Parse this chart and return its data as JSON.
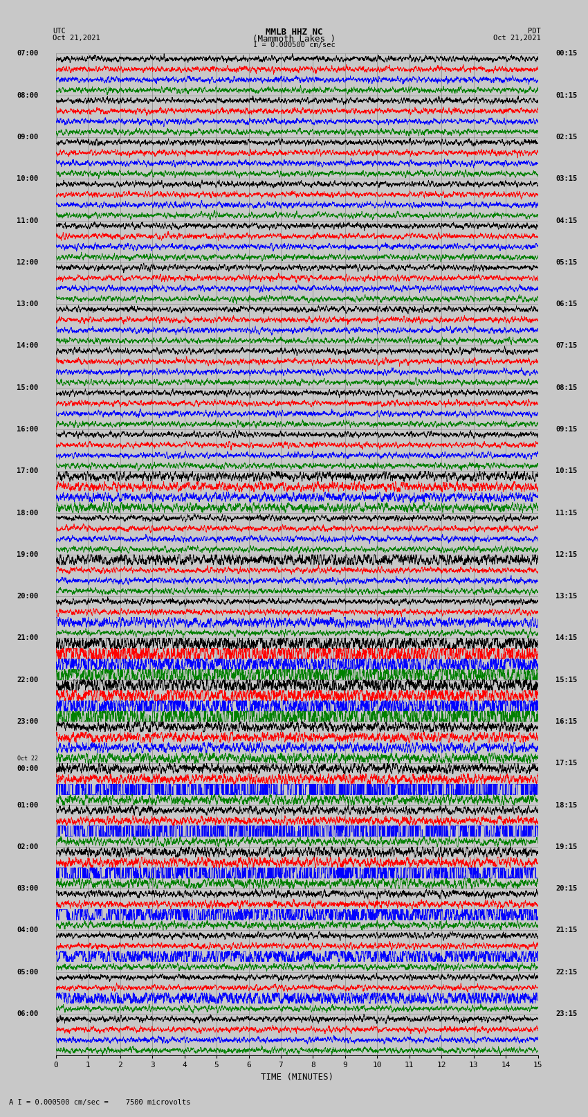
{
  "title_line1": "MMLB HHZ NC",
  "title_line2": "(Mammoth Lakes )",
  "title_line3": "I = 0.000500 cm/sec",
  "left_label_line1": "UTC",
  "left_label_line2": "Oct 21,2021",
  "right_label_line1": "PDT",
  "right_label_line2": "Oct 21,2021",
  "bottom_label": "TIME (MINUTES)",
  "bottom_note": "A I = 0.000500 cm/sec =    7500 microvolts",
  "utc_times_hourly": [
    "07:00",
    "08:00",
    "09:00",
    "10:00",
    "11:00",
    "12:00",
    "13:00",
    "14:00",
    "15:00",
    "16:00",
    "17:00",
    "18:00",
    "19:00",
    "20:00",
    "21:00",
    "22:00",
    "23:00",
    "Oct 22\n00:00",
    "01:00",
    "02:00",
    "03:00",
    "04:00",
    "05:00",
    "06:00"
  ],
  "pdt_times_hourly": [
    "00:15",
    "01:15",
    "02:15",
    "03:15",
    "04:15",
    "05:15",
    "06:15",
    "07:15",
    "08:15",
    "09:15",
    "10:15",
    "11:15",
    "12:15",
    "13:15",
    "14:15",
    "15:15",
    "16:15",
    "17:15",
    "18:15",
    "19:15",
    "20:15",
    "21:15",
    "22:15",
    "23:15"
  ],
  "n_rows": 96,
  "colors": [
    "black",
    "red",
    "blue",
    "green"
  ],
  "bg_color": "#c8c8c8",
  "grid_color": "#888888",
  "text_color": "black",
  "xmin": 0,
  "xmax": 15,
  "xticks": [
    0,
    1,
    2,
    3,
    4,
    5,
    6,
    7,
    8,
    9,
    10,
    11,
    12,
    13,
    14,
    15
  ],
  "noise_amplitude": 0.25,
  "figure_width": 8.5,
  "figure_height": 16.13,
  "dpi": 100
}
